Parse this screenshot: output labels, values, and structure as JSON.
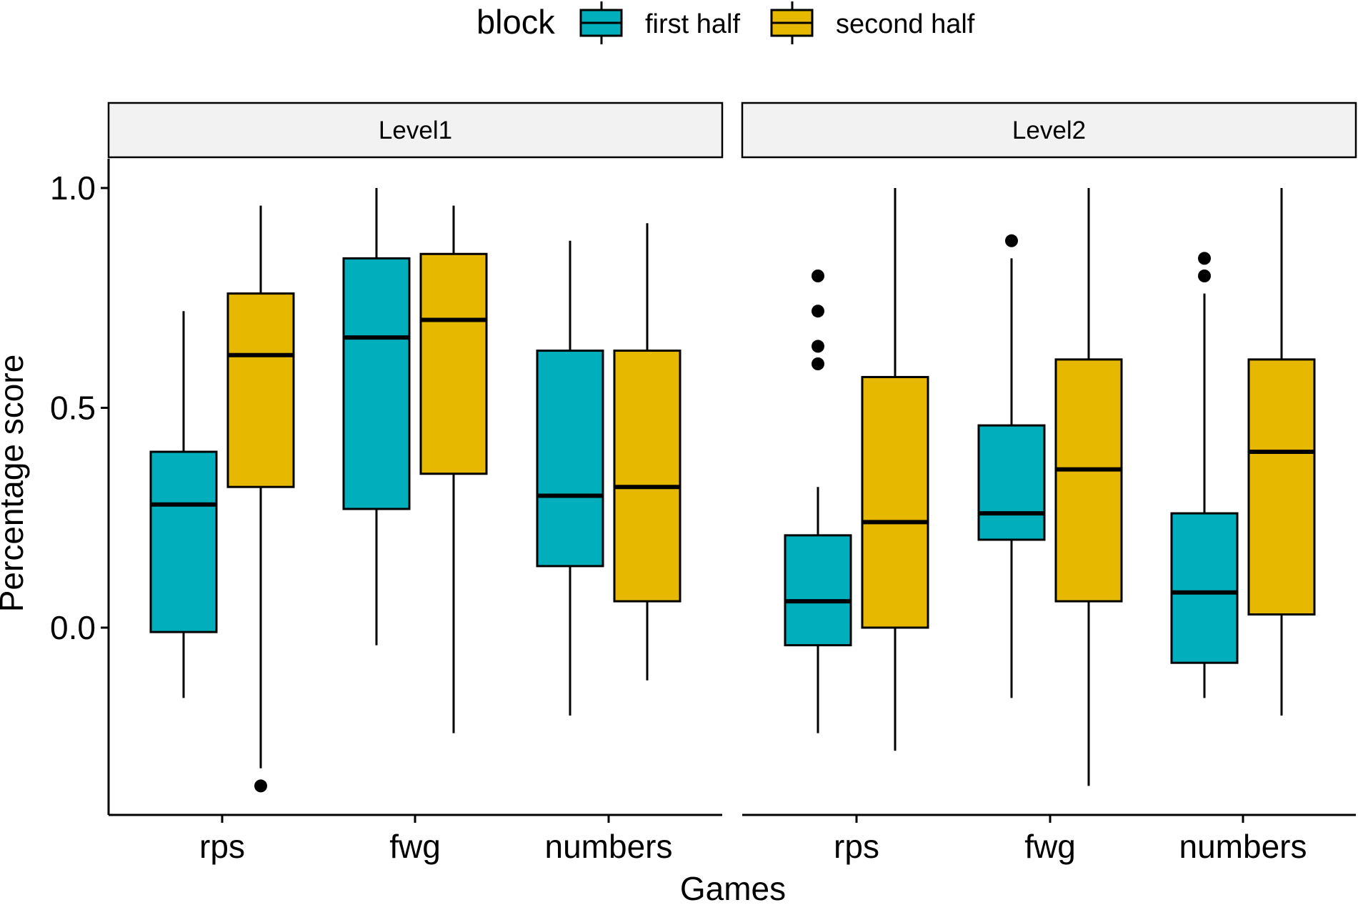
{
  "chart_data": {
    "type": "boxplot",
    "xlabel": "Games",
    "ylabel": "Percentage score",
    "ylim": [
      -0.42,
      1.07
    ],
    "yticks": [
      0.0,
      0.5,
      1.0
    ],
    "ytick_labels": [
      "0.0",
      "0.5",
      "1.0"
    ],
    "categories": [
      "rps",
      "fwg",
      "numbers"
    ],
    "grid": false,
    "legend": {
      "title": "block",
      "position": "top",
      "entries": [
        {
          "name": "first half",
          "color": "#00AFBB"
        },
        {
          "name": "second half",
          "color": "#E7B800"
        }
      ]
    },
    "panels": [
      {
        "label": "Level1",
        "series": [
          {
            "name": "first half",
            "boxes": [
              {
                "category": "rps",
                "whisker_low": -0.16,
                "q1": -0.01,
                "median": 0.28,
                "q3": 0.4,
                "whisker_high": 0.72,
                "outliers": []
              },
              {
                "category": "fwg",
                "whisker_low": -0.04,
                "q1": 0.27,
                "median": 0.66,
                "q3": 0.84,
                "whisker_high": 1.0,
                "outliers": []
              },
              {
                "category": "numbers",
                "whisker_low": -0.2,
                "q1": 0.14,
                "median": 0.3,
                "q3": 0.63,
                "whisker_high": 0.88,
                "outliers": []
              }
            ]
          },
          {
            "name": "second half",
            "boxes": [
              {
                "category": "rps",
                "whisker_low": -0.32,
                "q1": 0.32,
                "median": 0.62,
                "q3": 0.76,
                "whisker_high": 0.96,
                "outliers": [
                  -0.36
                ]
              },
              {
                "category": "fwg",
                "whisker_low": -0.24,
                "q1": 0.35,
                "median": 0.7,
                "q3": 0.85,
                "whisker_high": 0.96,
                "outliers": []
              },
              {
                "category": "numbers",
                "whisker_low": -0.12,
                "q1": 0.06,
                "median": 0.32,
                "q3": 0.63,
                "whisker_high": 0.92,
                "outliers": []
              }
            ]
          }
        ]
      },
      {
        "label": "Level2",
        "series": [
          {
            "name": "first half",
            "boxes": [
              {
                "category": "rps",
                "whisker_low": -0.24,
                "q1": -0.04,
                "median": 0.06,
                "q3": 0.21,
                "whisker_high": 0.32,
                "outliers": [
                  0.6,
                  0.64,
                  0.72,
                  0.8
                ]
              },
              {
                "category": "fwg",
                "whisker_low": -0.16,
                "q1": 0.2,
                "median": 0.26,
                "q3": 0.46,
                "whisker_high": 0.84,
                "outliers": [
                  0.88
                ]
              },
              {
                "category": "numbers",
                "whisker_low": -0.16,
                "q1": -0.08,
                "median": 0.08,
                "q3": 0.26,
                "whisker_high": 0.76,
                "outliers": [
                  0.8,
                  0.84
                ]
              }
            ]
          },
          {
            "name": "second half",
            "boxes": [
              {
                "category": "rps",
                "whisker_low": -0.28,
                "q1": 0.0,
                "median": 0.24,
                "q3": 0.57,
                "whisker_high": 1.0,
                "outliers": []
              },
              {
                "category": "fwg",
                "whisker_low": -0.36,
                "q1": 0.06,
                "median": 0.36,
                "q3": 0.61,
                "whisker_high": 1.0,
                "outliers": []
              },
              {
                "category": "numbers",
                "whisker_low": -0.2,
                "q1": 0.03,
                "median": 0.4,
                "q3": 0.61,
                "whisker_high": 1.0,
                "outliers": []
              }
            ]
          }
        ]
      }
    ]
  }
}
